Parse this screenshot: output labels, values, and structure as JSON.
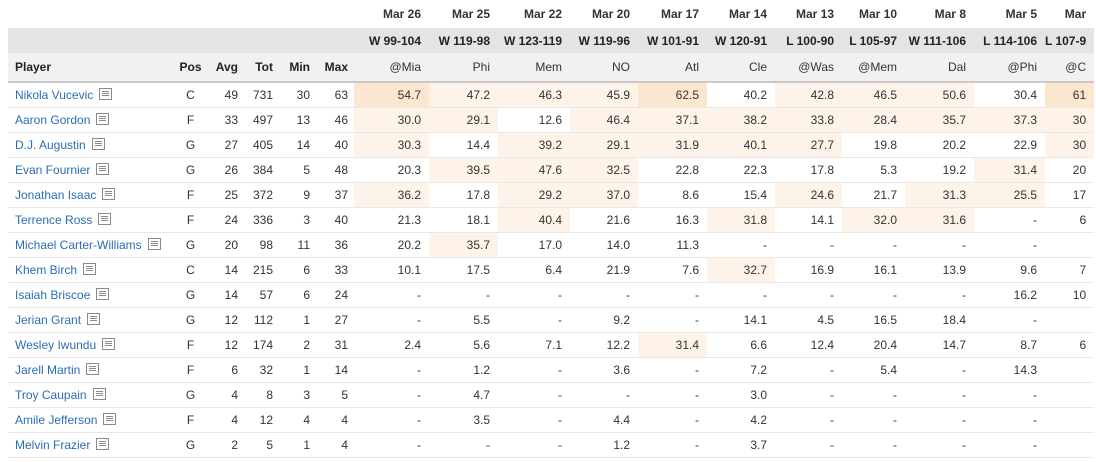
{
  "headers": {
    "player": "Player",
    "pos": "Pos",
    "avg": "Avg",
    "tot": "Tot",
    "min": "Min",
    "max": "Max"
  },
  "games": [
    {
      "date": "Mar 26",
      "result": "W 99-104",
      "opp": "@Mia"
    },
    {
      "date": "Mar 25",
      "result": "W 119-98",
      "opp": "Phi"
    },
    {
      "date": "Mar 22",
      "result": "W 123-119",
      "opp": "Mem"
    },
    {
      "date": "Mar 20",
      "result": "W 119-96",
      "opp": "NO"
    },
    {
      "date": "Mar 17",
      "result": "W 101-91",
      "opp": "Atl"
    },
    {
      "date": "Mar 14",
      "result": "W 120-91",
      "opp": "Cle"
    },
    {
      "date": "Mar 13",
      "result": "L 100-90",
      "opp": "@Was"
    },
    {
      "date": "Mar 10",
      "result": "L 105-97",
      "opp": "@Mem"
    },
    {
      "date": "Mar 8",
      "result": "W 111-106",
      "opp": "Dal"
    },
    {
      "date": "Mar 5",
      "result": "L 114-106",
      "opp": "@Phi"
    },
    {
      "date": "Mar",
      "result": "L 107-9",
      "opp": "@C"
    }
  ],
  "players": [
    {
      "name": "Nikola Vucevic",
      "pos": "C",
      "avg": "49",
      "tot": "731",
      "min": "30",
      "max": "63",
      "g": [
        "54.7",
        "47.2",
        "46.3",
        "45.9",
        "62.5",
        "40.2",
        "42.8",
        "46.5",
        "50.6",
        "30.4",
        "61"
      ],
      "hl": [
        2,
        1,
        1,
        1,
        2,
        0,
        1,
        1,
        1,
        0,
        2
      ]
    },
    {
      "name": "Aaron Gordon",
      "pos": "F",
      "avg": "33",
      "tot": "497",
      "min": "13",
      "max": "46",
      "g": [
        "30.0",
        "29.1",
        "12.6",
        "46.4",
        "37.1",
        "38.2",
        "33.8",
        "28.4",
        "35.7",
        "37.3",
        "30"
      ],
      "hl": [
        1,
        1,
        0,
        1,
        1,
        1,
        1,
        1,
        1,
        1,
        1
      ]
    },
    {
      "name": "D.J. Augustin",
      "pos": "G",
      "avg": "27",
      "tot": "405",
      "min": "14",
      "max": "40",
      "g": [
        "30.3",
        "14.4",
        "39.2",
        "29.1",
        "31.9",
        "40.1",
        "27.7",
        "19.8",
        "20.2",
        "22.9",
        "30"
      ],
      "hl": [
        1,
        0,
        1,
        1,
        1,
        1,
        1,
        0,
        0,
        0,
        1
      ]
    },
    {
      "name": "Evan Fournier",
      "pos": "G",
      "avg": "26",
      "tot": "384",
      "min": "5",
      "max": "48",
      "g": [
        "20.3",
        "39.5",
        "47.6",
        "32.5",
        "22.8",
        "22.3",
        "17.8",
        "5.3",
        "19.2",
        "31.4",
        "20"
      ],
      "hl": [
        0,
        1,
        1,
        1,
        0,
        0,
        0,
        0,
        0,
        1,
        0
      ]
    },
    {
      "name": "Jonathan Isaac",
      "pos": "F",
      "avg": "25",
      "tot": "372",
      "min": "9",
      "max": "37",
      "g": [
        "36.2",
        "17.8",
        "29.2",
        "37.0",
        "8.6",
        "15.4",
        "24.6",
        "21.7",
        "31.3",
        "25.5",
        "17"
      ],
      "hl": [
        1,
        0,
        1,
        1,
        0,
        0,
        1,
        0,
        1,
        1,
        0
      ]
    },
    {
      "name": "Terrence Ross",
      "pos": "F",
      "avg": "24",
      "tot": "336",
      "min": "3",
      "max": "40",
      "g": [
        "21.3",
        "18.1",
        "40.4",
        "21.6",
        "16.3",
        "31.8",
        "14.1",
        "32.0",
        "31.6",
        "-",
        "6"
      ],
      "hl": [
        0,
        0,
        1,
        0,
        0,
        1,
        0,
        1,
        1,
        0,
        0
      ]
    },
    {
      "name": "Michael Carter-Williams",
      "pos": "G",
      "avg": "20",
      "tot": "98",
      "min": "11",
      "max": "36",
      "g": [
        "20.2",
        "35.7",
        "17.0",
        "14.0",
        "11.3",
        "-",
        "-",
        "-",
        "-",
        "-",
        ""
      ],
      "hl": [
        0,
        1,
        0,
        0,
        0,
        0,
        0,
        0,
        0,
        0,
        0
      ]
    },
    {
      "name": "Khem Birch",
      "pos": "C",
      "avg": "14",
      "tot": "215",
      "min": "6",
      "max": "33",
      "g": [
        "10.1",
        "17.5",
        "6.4",
        "21.9",
        "7.6",
        "32.7",
        "16.9",
        "16.1",
        "13.9",
        "9.6",
        "7"
      ],
      "hl": [
        0,
        0,
        0,
        0,
        0,
        1,
        0,
        0,
        0,
        0,
        0
      ]
    },
    {
      "name": "Isaiah Briscoe",
      "pos": "G",
      "avg": "14",
      "tot": "57",
      "min": "6",
      "max": "24",
      "g": [
        "-",
        "-",
        "-",
        "-",
        "-",
        "-",
        "-",
        "-",
        "-",
        "16.2",
        "10"
      ],
      "hl": [
        0,
        0,
        0,
        0,
        0,
        0,
        0,
        0,
        0,
        0,
        0
      ]
    },
    {
      "name": "Jerian Grant",
      "pos": "G",
      "avg": "12",
      "tot": "112",
      "min": "1",
      "max": "27",
      "g": [
        "-",
        "5.5",
        "-",
        "9.2",
        "-",
        "14.1",
        "4.5",
        "16.5",
        "18.4",
        "-",
        ""
      ],
      "hl": [
        0,
        0,
        0,
        0,
        0,
        0,
        0,
        0,
        0,
        0,
        0
      ]
    },
    {
      "name": "Wesley Iwundu",
      "pos": "F",
      "avg": "12",
      "tot": "174",
      "min": "2",
      "max": "31",
      "g": [
        "2.4",
        "5.6",
        "7.1",
        "12.2",
        "31.4",
        "6.6",
        "12.4",
        "20.4",
        "14.7",
        "8.7",
        "6"
      ],
      "hl": [
        0,
        0,
        0,
        0,
        1,
        0,
        0,
        0,
        0,
        0,
        0
      ]
    },
    {
      "name": "Jarell Martin",
      "pos": "F",
      "avg": "6",
      "tot": "32",
      "min": "1",
      "max": "14",
      "g": [
        "-",
        "1.2",
        "-",
        "3.6",
        "-",
        "7.2",
        "-",
        "5.4",
        "-",
        "14.3",
        ""
      ],
      "hl": [
        0,
        0,
        0,
        0,
        0,
        0,
        0,
        0,
        0,
        0,
        0
      ]
    },
    {
      "name": "Troy Caupain",
      "pos": "G",
      "avg": "4",
      "tot": "8",
      "min": "3",
      "max": "5",
      "g": [
        "-",
        "4.7",
        "-",
        "-",
        "-",
        "3.0",
        "-",
        "-",
        "-",
        "-",
        ""
      ],
      "hl": [
        0,
        0,
        0,
        0,
        0,
        0,
        0,
        0,
        0,
        0,
        0
      ]
    },
    {
      "name": "Amile Jefferson",
      "pos": "F",
      "avg": "4",
      "tot": "12",
      "min": "4",
      "max": "4",
      "g": [
        "-",
        "3.5",
        "-",
        "4.4",
        "-",
        "4.2",
        "-",
        "-",
        "-",
        "-",
        ""
      ],
      "hl": [
        0,
        0,
        0,
        0,
        0,
        0,
        0,
        0,
        0,
        0,
        0
      ]
    },
    {
      "name": "Melvin Frazier",
      "pos": "G",
      "avg": "2",
      "tot": "5",
      "min": "1",
      "max": "4",
      "g": [
        "-",
        "-",
        "-",
        "1.2",
        "-",
        "3.7",
        "-",
        "-",
        "-",
        "-",
        ""
      ],
      "hl": [
        0,
        0,
        0,
        0,
        0,
        0,
        0,
        0,
        0,
        0,
        0
      ]
    }
  ]
}
